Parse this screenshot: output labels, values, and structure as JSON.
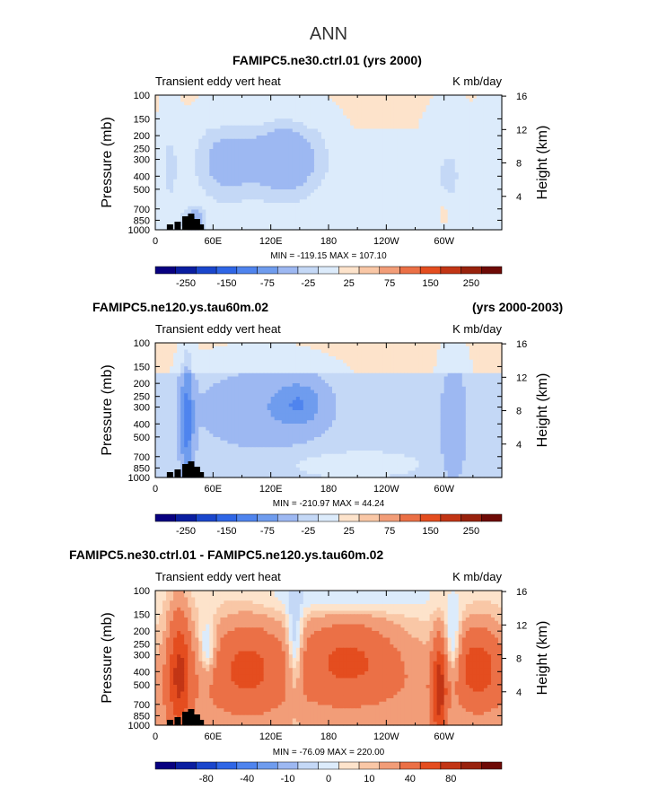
{
  "page_title": "ANN",
  "chart_data": [
    {
      "type": "heatmap",
      "title_left": "FAMIPC5.ne30.ctrl.01 (yrs 2000)",
      "title_right": "",
      "subtitle_left": "Transient eddy vert heat",
      "subtitle_right": "K mb/day",
      "ylabel": "Pressure (mb)",
      "ylabel_right": "Height (km)",
      "yticks": [
        "100",
        "150",
        "200",
        "250",
        "300",
        "400",
        "500",
        "700",
        "850",
        "1000"
      ],
      "yticks_right": [
        "16",
        "12",
        "8",
        "4"
      ],
      "xticks": [
        "0",
        "60E",
        "120E",
        "180",
        "120W",
        "60W"
      ],
      "min_max_text": "MIN = -119.15   MAX = 107.10",
      "min": -119.15,
      "max": 107.1,
      "colorbar_labels": [
        "-250",
        "-150",
        "-75",
        "-25",
        "25",
        "75",
        "150",
        "250"
      ],
      "levels": [
        -250,
        -200,
        -150,
        -100,
        -75,
        -50,
        -25,
        -10,
        10,
        25,
        50,
        75,
        100,
        150,
        200,
        250
      ]
    },
    {
      "type": "heatmap",
      "title_left": "FAMIPC5.ne120.ys.tau60m.02",
      "title_right": "(yrs 2000-2003)",
      "subtitle_left": "Transient eddy vert heat",
      "subtitle_right": "K mb/day",
      "ylabel": "Pressure (mb)",
      "ylabel_right": "Height (km)",
      "yticks": [
        "100",
        "150",
        "200",
        "250",
        "300",
        "400",
        "500",
        "700",
        "850",
        "1000"
      ],
      "yticks_right": [
        "16",
        "12",
        "8",
        "4"
      ],
      "xticks": [
        "0",
        "60E",
        "120E",
        "180",
        "120W",
        "60W"
      ],
      "min_max_text": "MIN = -210.97   MAX =  44.24",
      "min": -210.97,
      "max": 44.24,
      "colorbar_labels": [
        "-250",
        "-150",
        "-75",
        "-25",
        "25",
        "75",
        "150",
        "250"
      ],
      "levels": [
        -250,
        -200,
        -150,
        -100,
        -75,
        -50,
        -25,
        -10,
        10,
        25,
        50,
        75,
        100,
        150,
        200,
        250
      ]
    },
    {
      "type": "heatmap",
      "title_left": "FAMIPC5.ne30.ctrl.01 - FAMIPC5.ne120.ys.tau60m.02",
      "title_right": "",
      "subtitle_left": "Transient eddy vert heat",
      "subtitle_right": "K mb/day",
      "ylabel": "Pressure (mb)",
      "ylabel_right": "Height (km)",
      "yticks": [
        "100",
        "150",
        "200",
        "250",
        "300",
        "400",
        "500",
        "700",
        "850",
        "1000"
      ],
      "yticks_right": [
        "16",
        "12",
        "8",
        "4"
      ],
      "xticks": [
        "0",
        "60E",
        "120E",
        "180",
        "120W",
        "60W"
      ],
      "min_max_text": "MIN = -76.09   MAX = 220.00",
      "min": -76.09,
      "max": 220.0,
      "colorbar_labels": [
        "-80",
        "-40",
        "-10",
        "0",
        "10",
        "40",
        "80"
      ],
      "levels": [
        -120,
        -100,
        -80,
        -60,
        -40,
        -20,
        -10,
        -5,
        0,
        5,
        10,
        20,
        40,
        60,
        80,
        100
      ]
    }
  ],
  "palette": [
    "#080080",
    "#0a1ea0",
    "#1a46cc",
    "#2f66e6",
    "#4f84ee",
    "#6f9cee",
    "#9db8f2",
    "#c4d8f6",
    "#dcebfb",
    "#fde3cb",
    "#f9c7a6",
    "#f29d78",
    "#eb7046",
    "#e44d1f",
    "#c23515",
    "#98220d",
    "#6e0a06"
  ]
}
